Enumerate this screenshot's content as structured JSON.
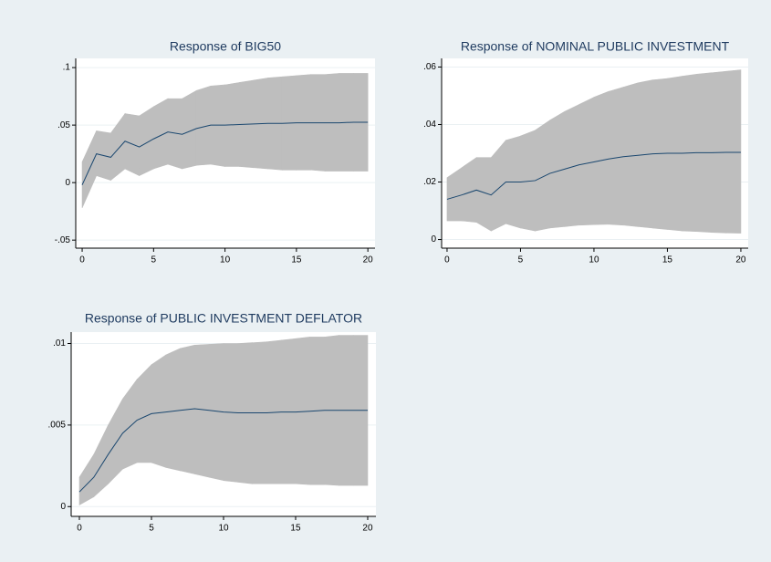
{
  "chart_data": [
    {
      "type": "line",
      "title": "Response of BIG50",
      "x": [
        0,
        1,
        2,
        3,
        4,
        5,
        6,
        7,
        8,
        9,
        10,
        11,
        12,
        13,
        14,
        15,
        16,
        17,
        18,
        19,
        20
      ],
      "values": [
        -0.002,
        0.025,
        0.022,
        0.036,
        0.031,
        0.038,
        0.044,
        0.042,
        0.047,
        0.05,
        0.05,
        0.0505,
        0.051,
        0.0515,
        0.0515,
        0.052,
        0.052,
        0.052,
        0.052,
        0.0525,
        0.0525
      ],
      "upper": [
        0.018,
        0.045,
        0.043,
        0.06,
        0.058,
        0.066,
        0.073,
        0.073,
        0.08,
        0.084,
        0.085,
        0.087,
        0.089,
        0.091,
        0.092,
        0.093,
        0.094,
        0.094,
        0.095,
        0.095,
        0.095
      ],
      "lower": [
        -0.022,
        0.006,
        0.002,
        0.012,
        0.006,
        0.012,
        0.016,
        0.012,
        0.015,
        0.016,
        0.014,
        0.014,
        0.013,
        0.012,
        0.011,
        0.011,
        0.011,
        0.01,
        0.01,
        0.01,
        0.01
      ],
      "color": "#1a476f",
      "band_color": "#bebebe",
      "xlim": [
        -0.45,
        20.5
      ],
      "xticks": [
        0,
        5,
        10,
        15,
        20
      ],
      "ylim": [
        -0.057,
        0.108
      ],
      "yticks": [
        {
          "value": -0.05,
          "label": "-.05"
        },
        0,
        {
          "value": 0.05,
          "label": ".05"
        },
        {
          "value": 0.1,
          "label": ".1"
        }
      ],
      "grid": true
    },
    {
      "type": "line",
      "title": "Response of NOMINAL PUBLIC INVESTMENT",
      "x": [
        0,
        1,
        2,
        3,
        4,
        5,
        6,
        7,
        8,
        9,
        10,
        11,
        12,
        13,
        14,
        15,
        16,
        17,
        18,
        19,
        20
      ],
      "values": [
        0.014,
        0.0155,
        0.0172,
        0.0155,
        0.02,
        0.02,
        0.0205,
        0.023,
        0.0245,
        0.026,
        0.027,
        0.028,
        0.0288,
        0.0293,
        0.0298,
        0.03,
        0.03,
        0.0302,
        0.0302,
        0.0303,
        0.0303
      ],
      "upper": [
        0.0215,
        0.025,
        0.0285,
        0.0285,
        0.0345,
        0.036,
        0.038,
        0.0415,
        0.0445,
        0.047,
        0.0495,
        0.0515,
        0.053,
        0.0545,
        0.0555,
        0.056,
        0.0568,
        0.0575,
        0.058,
        0.0585,
        0.059
      ],
      "lower": [
        0.0065,
        0.0065,
        0.006,
        0.003,
        0.0055,
        0.004,
        0.003,
        0.004,
        0.0045,
        0.005,
        0.0052,
        0.0053,
        0.005,
        0.0045,
        0.004,
        0.0035,
        0.003,
        0.0028,
        0.0025,
        0.0023,
        0.0022
      ],
      "color": "#1a476f",
      "band_color": "#bebebe",
      "xlim": [
        -0.37,
        20.5
      ],
      "xticks": [
        0,
        5,
        10,
        15,
        20
      ],
      "ylim": [
        -0.003,
        0.063
      ],
      "yticks": [
        0,
        {
          "value": 0.02,
          "label": ".02"
        },
        {
          "value": 0.04,
          "label": ".04"
        },
        {
          "value": 0.06,
          "label": ".06"
        }
      ],
      "grid": true
    },
    {
      "type": "line",
      "title": "Response of PUBLIC INVESTMENT DEFLATOR",
      "x": [
        0,
        1,
        2,
        3,
        4,
        5,
        6,
        7,
        8,
        9,
        10,
        11,
        12,
        13,
        14,
        15,
        16,
        17,
        18,
        19,
        20
      ],
      "values": [
        0.0009,
        0.0018,
        0.0032,
        0.0045,
        0.0053,
        0.0057,
        0.0058,
        0.0059,
        0.006,
        0.0059,
        0.0058,
        0.00575,
        0.00575,
        0.00575,
        0.0058,
        0.0058,
        0.00585,
        0.0059,
        0.0059,
        0.0059,
        0.0059
      ],
      "upper": [
        0.0018,
        0.0032,
        0.005,
        0.0066,
        0.0078,
        0.0087,
        0.0093,
        0.0097,
        0.0099,
        0.00995,
        0.01,
        0.01,
        0.01005,
        0.0101,
        0.0102,
        0.0103,
        0.0104,
        0.0104,
        0.0105,
        0.0105,
        0.0105
      ],
      "lower": [
        0.0001,
        0.0006,
        0.0014,
        0.0023,
        0.0027,
        0.0027,
        0.0024,
        0.0022,
        0.002,
        0.0018,
        0.0016,
        0.0015,
        0.0014,
        0.0014,
        0.0014,
        0.0014,
        0.00135,
        0.00135,
        0.0013,
        0.0013,
        0.0013
      ],
      "color": "#1a476f",
      "band_color": "#bebebe",
      "xlim": [
        -0.57,
        20.57
      ],
      "xticks": [
        0,
        5,
        10,
        15,
        20
      ],
      "ylim": [
        -0.0006,
        0.0107
      ],
      "yticks": [
        0,
        {
          "value": 0.005,
          "label": ".005"
        },
        {
          "value": 0.01,
          "label": ".01"
        }
      ],
      "grid": true
    }
  ]
}
